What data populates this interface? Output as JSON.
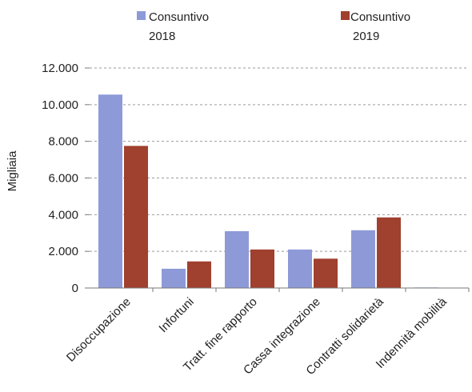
{
  "chart_data": {
    "type": "bar",
    "categories": [
      "Disoccupazione",
      "Infortuni",
      "Tratt. fine rapporto",
      "Cassa integrazione",
      "Contratti solidarietà",
      "Indennità mobilità"
    ],
    "series": [
      {
        "name_line1": "Consuntivo",
        "name_line2": "2018",
        "color": "#8e9ad8",
        "values": [
          10550,
          1050,
          3100,
          2100,
          3150,
          30
        ]
      },
      {
        "name_line1": "Consuntivo",
        "name_line2": "2019",
        "color": "#a0402e",
        "values": [
          7750,
          1450,
          2100,
          1600,
          3850,
          0
        ]
      }
    ],
    "ylabel": "Migliaia",
    "ylim": [
      0,
      12000
    ],
    "yticks": [
      0,
      2000,
      4000,
      6000,
      8000,
      10000,
      12000
    ],
    "ytick_labels": [
      "0",
      "2.000",
      "4.000",
      "6.000",
      "8.000",
      "10.000",
      "12.000"
    ],
    "grid": true,
    "legend_position": "top"
  }
}
